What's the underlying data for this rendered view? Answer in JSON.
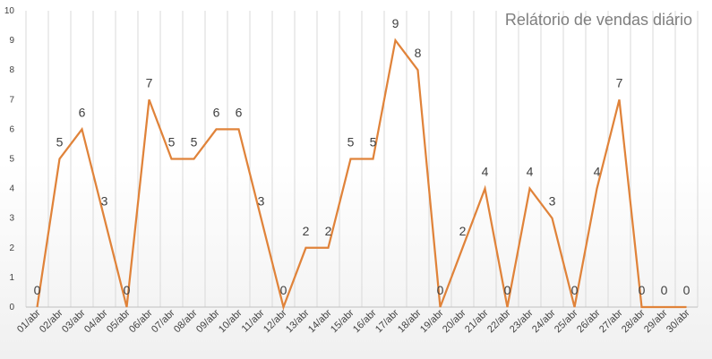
{
  "chart_data": {
    "type": "line",
    "title": "Relátorio de vendas diário",
    "xlabel": "",
    "ylabel": "",
    "ylim": [
      0,
      10
    ],
    "yticks": [
      0,
      1,
      2,
      3,
      4,
      5,
      6,
      7,
      8,
      9,
      10
    ],
    "grid": "vertical",
    "data_labels": true,
    "line_color": "#e0833a",
    "categories": [
      "01/abr",
      "02/abr",
      "03/abr",
      "04/abr",
      "05/abr",
      "06/abr",
      "07/abr",
      "08/abr",
      "09/abr",
      "10/abr",
      "11/abr",
      "12/abr",
      "13/abr",
      "14/abr",
      "15/abr",
      "16/abr",
      "17/abr",
      "18/abr",
      "19/abr",
      "20/abr",
      "21/abr",
      "22/abr",
      "23/abr",
      "24/abr",
      "25/abr",
      "26/abr",
      "27/abr",
      "28/abr",
      "29/abr",
      "30/abr"
    ],
    "values": [
      0,
      5,
      6,
      3,
      0,
      7,
      5,
      5,
      6,
      6,
      3,
      0,
      2,
      2,
      5,
      5,
      9,
      8,
      0,
      2,
      4,
      0,
      4,
      3,
      0,
      4,
      7,
      0,
      0,
      0
    ]
  }
}
